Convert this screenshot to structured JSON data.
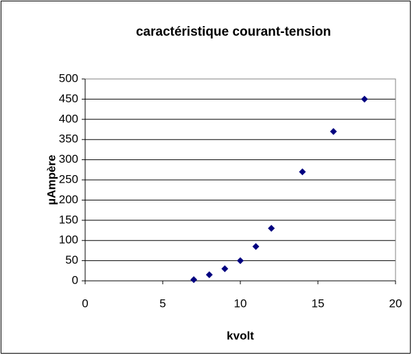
{
  "chart_data": {
    "type": "scatter",
    "title": "caractéristique courant-tension",
    "x_label": "kvolt",
    "y_label": "µAmpère",
    "x": [
      7,
      8,
      9,
      10,
      11,
      12,
      14,
      16,
      18
    ],
    "values": [
      3,
      15,
      30,
      50,
      85,
      130,
      270,
      370,
      450
    ],
    "color": "#000080",
    "xlim": [
      0,
      20
    ],
    "xticks": [
      0,
      5,
      10,
      15,
      20
    ],
    "ylim": [
      0,
      500
    ],
    "yticks": [
      0,
      50,
      100,
      150,
      200,
      250,
      300,
      350,
      400,
      450,
      500
    ],
    "grid": true
  }
}
